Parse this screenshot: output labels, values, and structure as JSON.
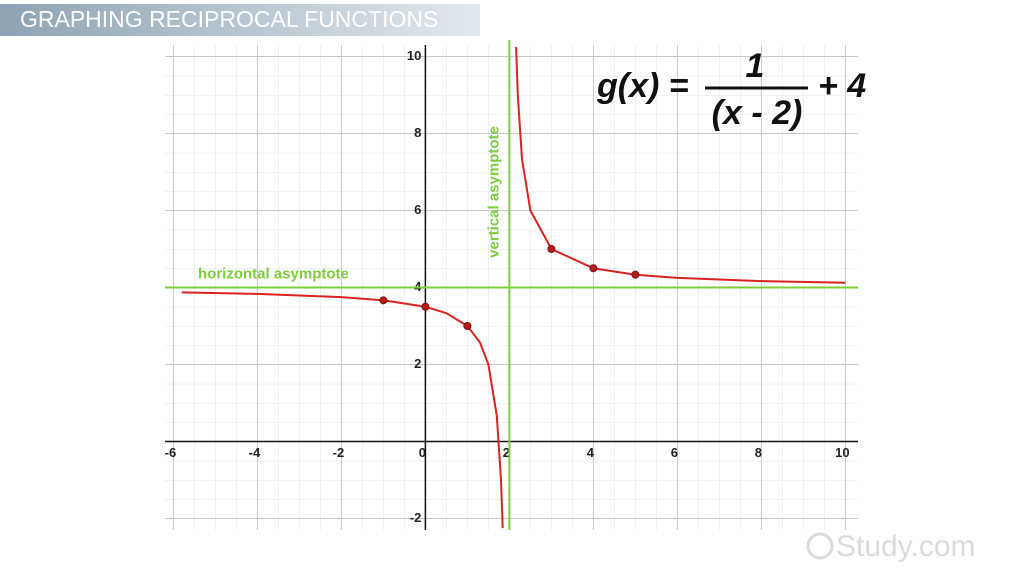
{
  "chart_data": {
    "type": "line",
    "title": "GRAPHING RECIPROCAL FUNCTIONS",
    "equation": {
      "lhs": "g(x) =",
      "numerator": "1",
      "denominator": "(x - 2)",
      "rhs": "+ 4"
    },
    "x": [
      -5.8,
      -4,
      -2,
      -1,
      0,
      0.5,
      1,
      1.3,
      1.5,
      1.7,
      1.8,
      1.84,
      2,
      2.16,
      2.2,
      2.3,
      2.5,
      3,
      4,
      5,
      6,
      8,
      10
    ],
    "values": [
      3.872,
      3.833,
      3.75,
      3.667,
      3.5,
      3.333,
      3,
      2.571,
      2,
      0.667,
      -1,
      -2.25,
      null,
      10.25,
      9,
      7.333,
      6,
      5,
      4.5,
      4.333,
      4.25,
      4.167,
      4.125
    ],
    "color": "#d8231f",
    "points": {
      "x": [
        -1,
        0,
        1,
        3,
        4,
        5
      ],
      "y": [
        3.667,
        3.5,
        3,
        5,
        4.5,
        4.333
      ],
      "color": "#b51c1a"
    },
    "asymptotes": {
      "horizontal": {
        "label": "horizontal asymptote",
        "value": 4
      },
      "vertical": {
        "label": "vertical asymptote",
        "value": 2
      },
      "color": "#7fcd3b"
    },
    "xlim": [
      -6.2,
      10.3
    ],
    "ylim": [
      -2.3,
      10.3
    ],
    "xticks": [
      -6,
      -4,
      -2,
      0,
      2,
      4,
      6,
      8,
      10
    ],
    "yticks": [
      -2,
      2,
      4,
      6,
      8,
      10
    ],
    "grid": true,
    "watermark": "Study.com"
  }
}
